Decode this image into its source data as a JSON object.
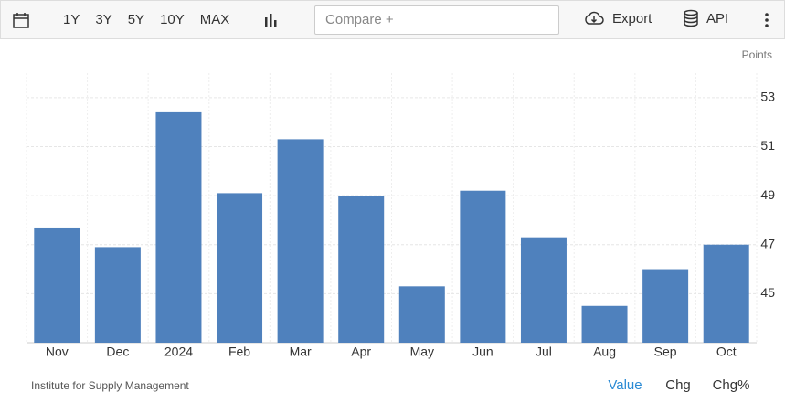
{
  "toolbar": {
    "ranges": [
      "1Y",
      "3Y",
      "5Y",
      "10Y",
      "MAX"
    ],
    "compare_placeholder": "Compare +",
    "export": "Export",
    "api": "API"
  },
  "chart_data": {
    "type": "bar",
    "y_axis_label": "Points",
    "categories": [
      "Nov",
      "Dec",
      "2024",
      "Feb",
      "Mar",
      "Apr",
      "May",
      "Jun",
      "Jul",
      "Aug",
      "Sep",
      "Oct"
    ],
    "values": [
      47.7,
      46.9,
      52.4,
      49.1,
      51.3,
      49.0,
      45.3,
      49.2,
      47.3,
      44.5,
      46.0,
      47.0
    ],
    "color": "#4f81bd",
    "ylim": [
      43,
      54
    ],
    "yticks": [
      45,
      47,
      49,
      51,
      53
    ],
    "grid": true,
    "source": "Institute for Supply Management",
    "value_modes": [
      "Value",
      "Chg",
      "Chg%"
    ]
  }
}
